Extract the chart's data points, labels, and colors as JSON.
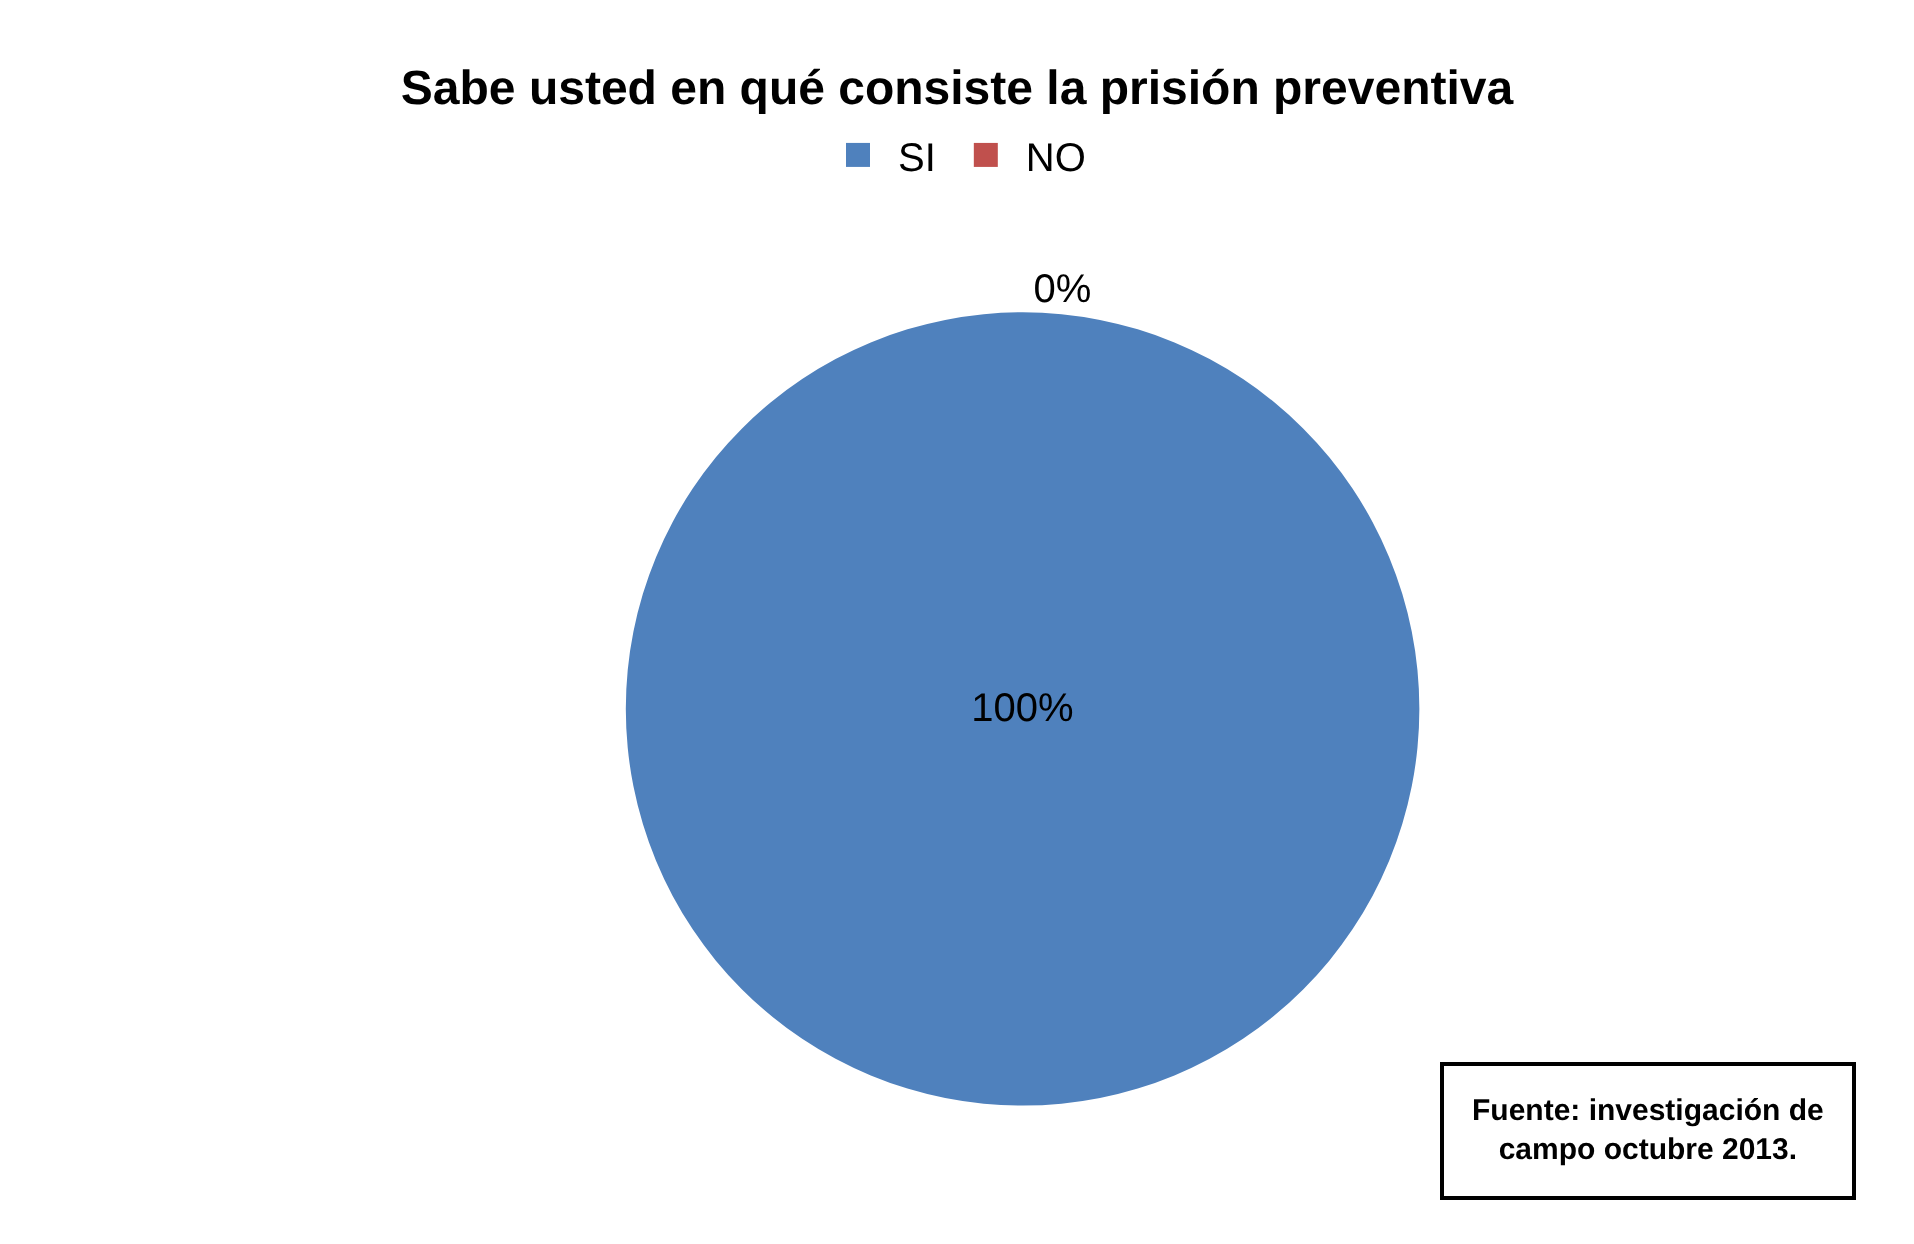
{
  "chart_data": {
    "type": "pie",
    "title": "Sabe usted en qué consiste la prisión preventiva",
    "categories": [
      "SI",
      "NO"
    ],
    "values": [
      100,
      0
    ],
    "colors": [
      "#4f81bd",
      "#c0504d"
    ],
    "value_labels": [
      "100%",
      "0%"
    ],
    "legend": "top",
    "annotations": [
      "Fuente: investigación de campo octubre 2013."
    ]
  }
}
